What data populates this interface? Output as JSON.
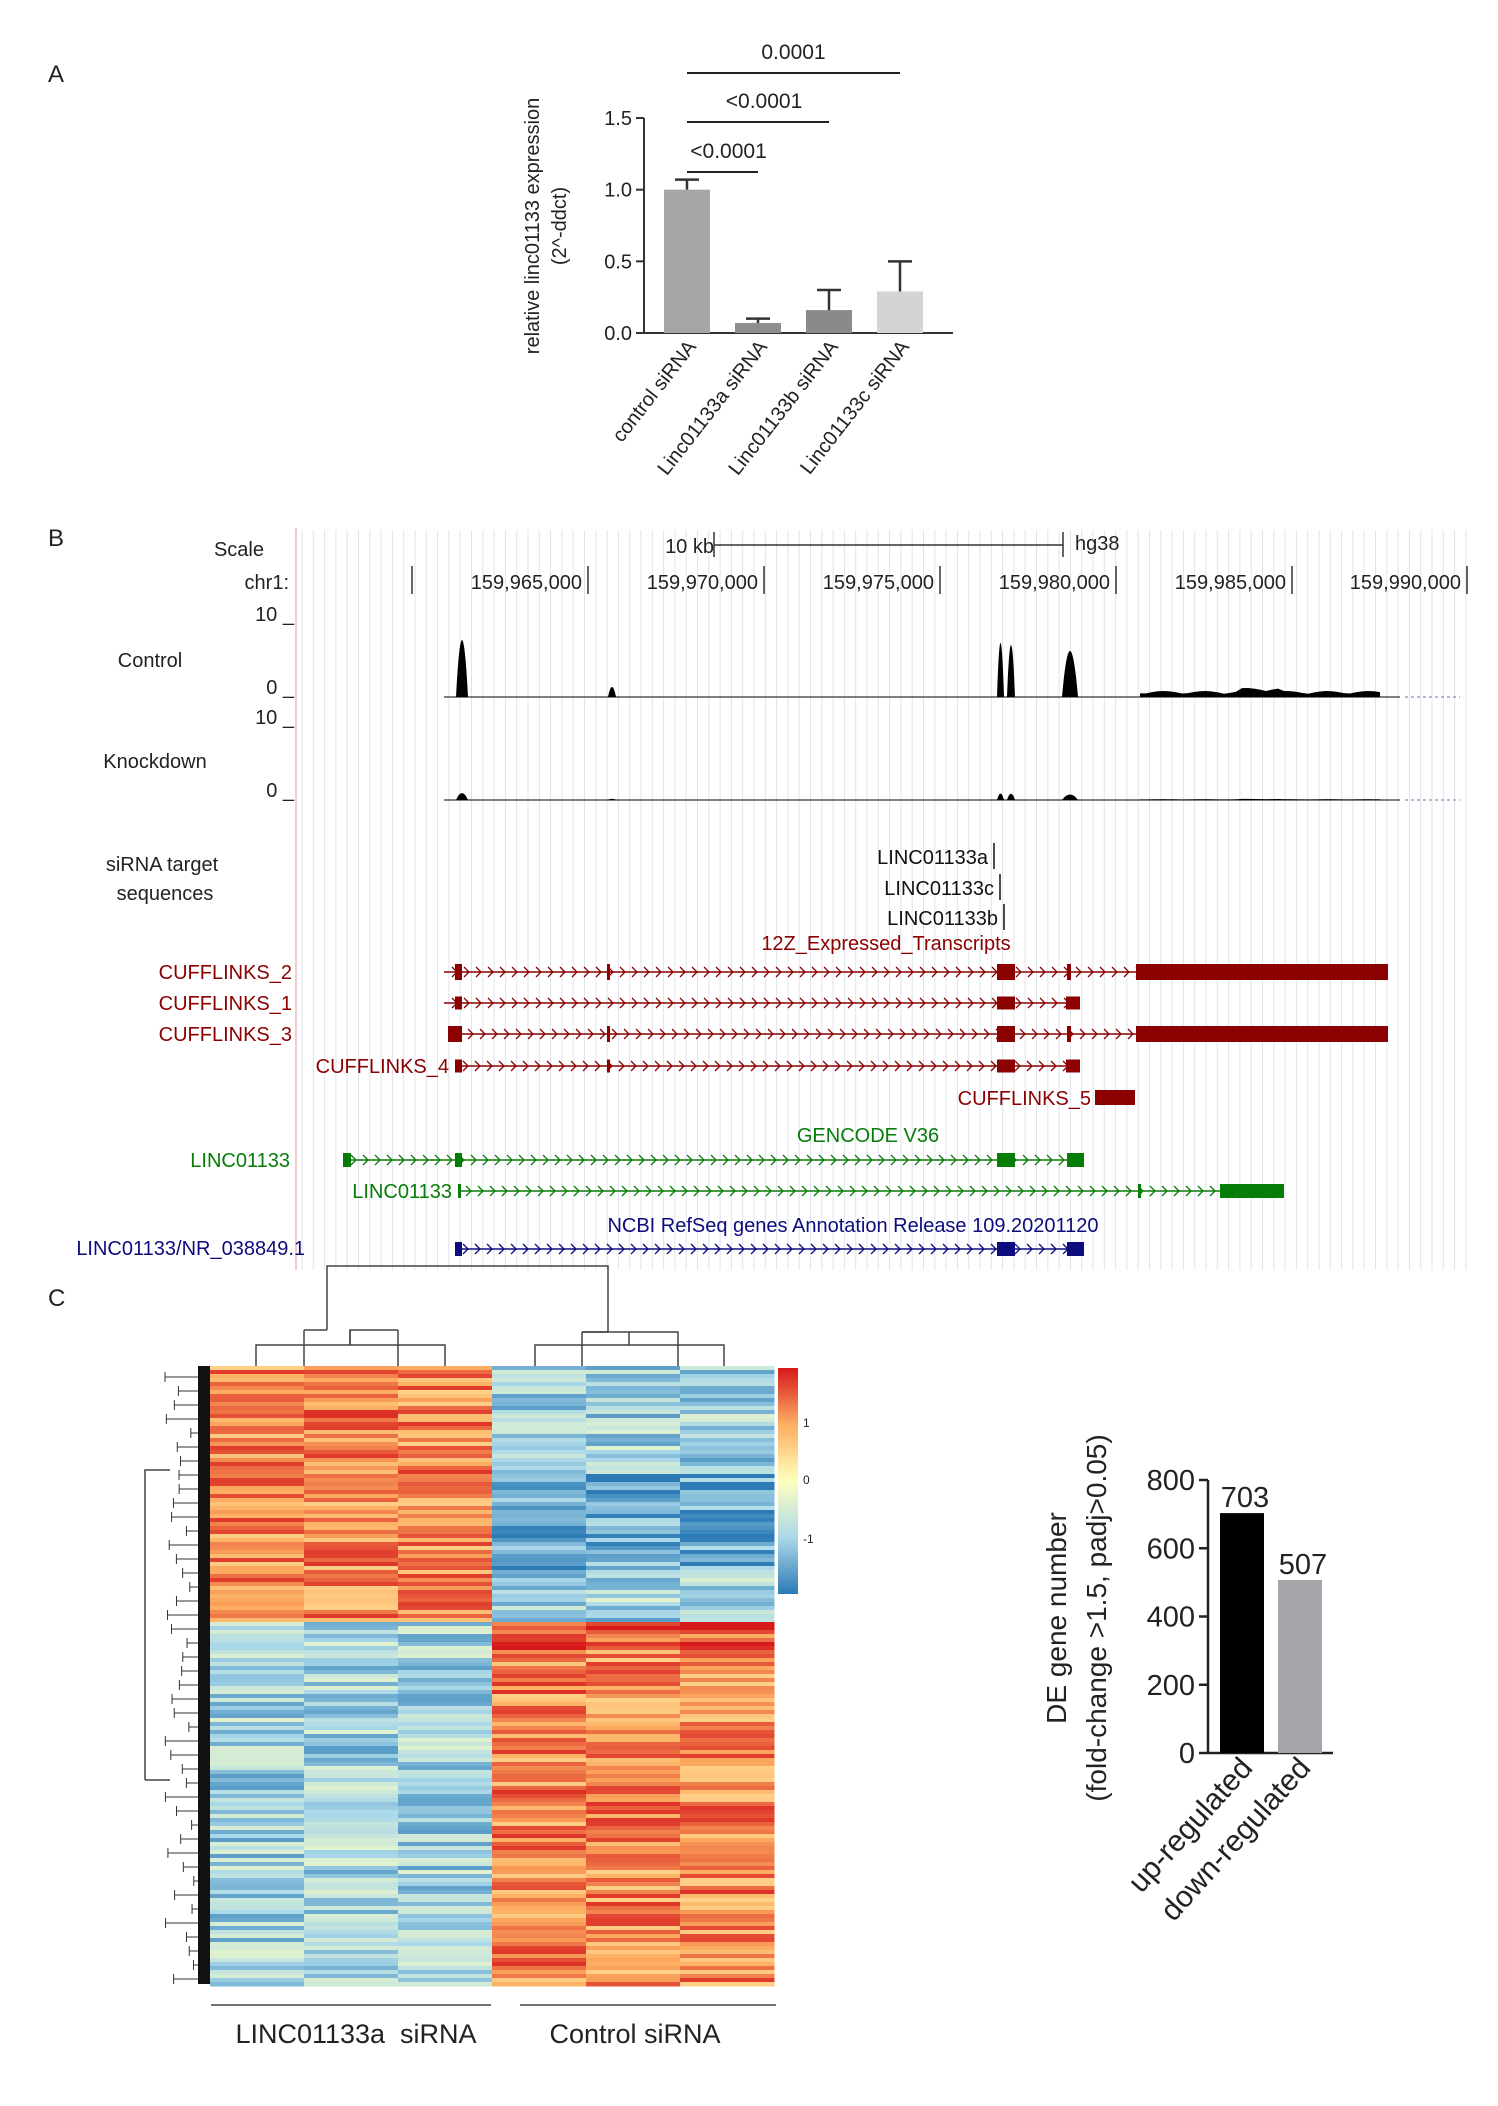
{
  "panels": {
    "a": "A",
    "b": "B",
    "c": "C"
  },
  "chart_data": [
    {
      "type": "bar",
      "panel": "A",
      "ylabel_line1": "relative linc01133 expression",
      "ylabel_line2": "(2^-ddct)",
      "ylim": [
        0,
        1.5
      ],
      "yticks": [
        "0.0",
        "0.5",
        "1.0",
        "1.5"
      ],
      "categories": [
        "control siRNA",
        "Linc01133a siRNA",
        "Linc01133b siRNA",
        "Linc01133c siRNA"
      ],
      "values": [
        1.0,
        0.07,
        0.16,
        0.29
      ],
      "errors": [
        0.07,
        0.03,
        0.14,
        0.21
      ],
      "colors": [
        "#a6a6a8",
        "#8e8e90",
        "#8a8a8c",
        "#d4d4d6"
      ],
      "significance": [
        {
          "from": 0,
          "to": 1,
          "label": "<0.0001"
        },
        {
          "from": 0,
          "to": 2,
          "label": "<0.0001"
        },
        {
          "from": 0,
          "to": 3,
          "label": "0.0001"
        }
      ]
    },
    {
      "type": "bar",
      "panel": "C",
      "ylabel_line1": "DE gene number",
      "ylabel_line2": "(fold-change >1.5, padj>0.05)",
      "ylim": [
        0,
        800
      ],
      "yticks": [
        "0",
        "200",
        "400",
        "600",
        "800"
      ],
      "categories": [
        "up-regulated",
        "down-regulated"
      ],
      "values": [
        703,
        507
      ],
      "value_labels": [
        "703",
        "507"
      ],
      "colors": [
        "#000000",
        "#a5a5aa"
      ]
    },
    {
      "type": "heatmap",
      "panel": "C",
      "groups": [
        "LINC01133a  siRNA",
        "Control siRNA"
      ],
      "colorbar_ticks": [
        "1",
        "0",
        "-1"
      ],
      "colormap": [
        "#2c7bb6",
        "#abd9e9",
        "#ffffbf",
        "#fdae61",
        "#d7191c"
      ]
    }
  ],
  "browser": {
    "scale_label": "Scale",
    "scale_bar": "10 kb",
    "assembly": "hg38",
    "chrom": "chr1:",
    "positions": [
      "159,965,000",
      "159,970,000",
      "159,975,000",
      "159,980,000",
      "159,985,000",
      "159,990,000"
    ],
    "tracks": [
      {
        "name": "Control",
        "max": "10 _",
        "min": "0 _"
      },
      {
        "name": "Knockdown",
        "max": "10 _",
        "min": "0 _"
      }
    ],
    "sirna_title_1": "siRNA target",
    "sirna_title_2": "sequences",
    "sirna_labels": [
      "LINC01133a",
      "LINC01133c",
      "LINC01133b"
    ],
    "cufflinks_title": "12Z_Expressed_Transcripts",
    "cufflinks_color": "#8b0000",
    "cufflinks": [
      "CUFFLINKS_2",
      "CUFFLINKS_1",
      "CUFFLINKS_3",
      "CUFFLINKS_4",
      "CUFFLINKS_5"
    ],
    "gencode_title": "GENCODE V36",
    "gencode_color": "#067d06",
    "gencode": [
      "LINC01133",
      "LINC01133"
    ],
    "refseq_title": "NCBI RefSeq genes Annotation Release 109.20201120",
    "refseq_color": "#0c0c7e",
    "refseq": [
      "LINC01133/NR_038849.1"
    ]
  }
}
